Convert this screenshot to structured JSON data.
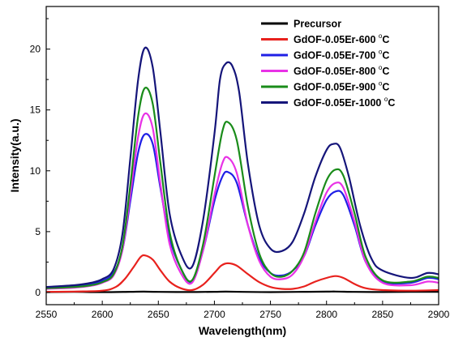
{
  "chart_data": {
    "type": "line",
    "xlabel": "Wavelength(nm)",
    "ylabel": "Intensity(a.u.)",
    "xlim": [
      2550,
      2900
    ],
    "ylim": [
      -1,
      23.5
    ],
    "xticks": [
      2550,
      2600,
      2650,
      2700,
      2750,
      2800,
      2850,
      2900
    ],
    "yticks": [
      0,
      5,
      10,
      15,
      20
    ],
    "grid": false,
    "legend_position": "top-right",
    "legend_degree_mark": "o",
    "series": [
      {
        "name": "Precursor",
        "color": "#000000",
        "x": [
          2550,
          2575,
          2600,
          2625,
          2637,
          2650,
          2675,
          2700,
          2710,
          2725,
          2750,
          2775,
          2800,
          2808,
          2825,
          2850,
          2875,
          2900
        ],
        "y": [
          0.03,
          0.05,
          0.03,
          0.06,
          0.07,
          0.05,
          0.04,
          0.06,
          0.07,
          0.05,
          0.03,
          0.05,
          0.07,
          0.08,
          0.05,
          0.04,
          0.05,
          0.06
        ]
      },
      {
        "name": "GdOF-0.05Er-600 °C",
        "color": "#e8211d",
        "x": [
          2550,
          2575,
          2600,
          2612,
          2620,
          2628,
          2634,
          2638,
          2645,
          2652,
          2660,
          2670,
          2680,
          2690,
          2700,
          2706,
          2712,
          2720,
          2730,
          2740,
          2750,
          2760,
          2770,
          2780,
          2790,
          2800,
          2808,
          2815,
          2825,
          2835,
          2850,
          2875,
          2900
        ],
        "y": [
          0.05,
          0.08,
          0.15,
          0.45,
          1.1,
          2.1,
          2.9,
          3.05,
          2.7,
          1.8,
          0.9,
          0.35,
          0.2,
          0.65,
          1.6,
          2.2,
          2.4,
          2.2,
          1.5,
          0.85,
          0.45,
          0.3,
          0.3,
          0.5,
          0.9,
          1.2,
          1.35,
          1.2,
          0.7,
          0.35,
          0.2,
          0.15,
          0.2
        ]
      },
      {
        "name": "GdOF-0.05Er-700 °C",
        "color": "#1f1fe6",
        "x": [
          2550,
          2575,
          2590,
          2600,
          2610,
          2618,
          2625,
          2632,
          2638,
          2645,
          2652,
          2660,
          2670,
          2680,
          2690,
          2700,
          2707,
          2712,
          2720,
          2730,
          2740,
          2750,
          2760,
          2770,
          2780,
          2790,
          2800,
          2808,
          2815,
          2825,
          2835,
          2850,
          2875,
          2890,
          2900
        ],
        "y": [
          0.4,
          0.5,
          0.7,
          0.95,
          1.6,
          3.5,
          7.5,
          11.5,
          13.0,
          12.2,
          8.5,
          4.5,
          2.0,
          0.9,
          3.5,
          7.5,
          9.5,
          9.9,
          9.0,
          5.5,
          2.8,
          1.6,
          1.4,
          1.8,
          3.0,
          5.5,
          7.6,
          8.3,
          8.0,
          5.5,
          2.5,
          0.9,
          0.8,
          1.2,
          1.1
        ]
      },
      {
        "name": "GdOF-0.05Er-800 °C",
        "color": "#e832e6",
        "x": [
          2550,
          2575,
          2590,
          2600,
          2610,
          2618,
          2625,
          2632,
          2638,
          2645,
          2652,
          2660,
          2670,
          2680,
          2690,
          2700,
          2707,
          2712,
          2720,
          2730,
          2740,
          2750,
          2760,
          2770,
          2780,
          2790,
          2800,
          2808,
          2815,
          2825,
          2835,
          2850,
          2875,
          2890,
          2900
        ],
        "y": [
          0.3,
          0.4,
          0.55,
          0.8,
          1.4,
          3.5,
          8.0,
          12.8,
          14.7,
          13.5,
          8.8,
          4.0,
          1.6,
          0.8,
          3.5,
          8.0,
          10.6,
          11.1,
          9.8,
          5.5,
          2.6,
          1.3,
          1.1,
          1.5,
          3.0,
          5.8,
          8.2,
          9.0,
          8.6,
          5.8,
          2.5,
          0.8,
          0.6,
          0.9,
          0.8
        ]
      },
      {
        "name": "GdOF-0.05Er-900 °C",
        "color": "#1a8c1a",
        "x": [
          2550,
          2575,
          2590,
          2600,
          2610,
          2618,
          2625,
          2632,
          2638,
          2645,
          2652,
          2660,
          2670,
          2680,
          2690,
          2700,
          2707,
          2712,
          2720,
          2730,
          2740,
          2750,
          2760,
          2770,
          2780,
          2790,
          2800,
          2808,
          2815,
          2825,
          2835,
          2850,
          2875,
          2890,
          2900
        ],
        "y": [
          0.35,
          0.45,
          0.6,
          0.85,
          1.5,
          3.8,
          8.8,
          14.5,
          16.8,
          15.5,
          10.5,
          5.0,
          2.0,
          1.0,
          4.0,
          9.5,
          13.2,
          14.0,
          12.5,
          7.0,
          3.2,
          1.6,
          1.3,
          1.8,
          3.3,
          6.5,
          9.2,
          10.1,
          9.6,
          6.5,
          2.9,
          1.0,
          0.9,
          1.3,
          1.2
        ]
      },
      {
        "name": "GdOF-0.05Er-1000 °C",
        "color": "#15157a",
        "x": [
          2550,
          2575,
          2590,
          2600,
          2610,
          2618,
          2625,
          2632,
          2638,
          2645,
          2652,
          2660,
          2670,
          2680,
          2690,
          2700,
          2705,
          2710,
          2716,
          2722,
          2730,
          2740,
          2750,
          2760,
          2770,
          2780,
          2790,
          2800,
          2806,
          2812,
          2820,
          2830,
          2840,
          2850,
          2875,
          2890,
          2900
        ],
        "y": [
          0.45,
          0.6,
          0.8,
          1.1,
          1.9,
          4.8,
          11.0,
          17.5,
          20.1,
          18.5,
          13.0,
          6.5,
          3.2,
          2.1,
          6.0,
          13.0,
          17.5,
          18.8,
          18.6,
          16.5,
          10.5,
          5.5,
          3.6,
          3.4,
          4.2,
          6.5,
          9.5,
          11.7,
          12.2,
          11.9,
          9.5,
          5.5,
          2.8,
          1.8,
          1.2,
          1.6,
          1.5
        ]
      }
    ]
  }
}
